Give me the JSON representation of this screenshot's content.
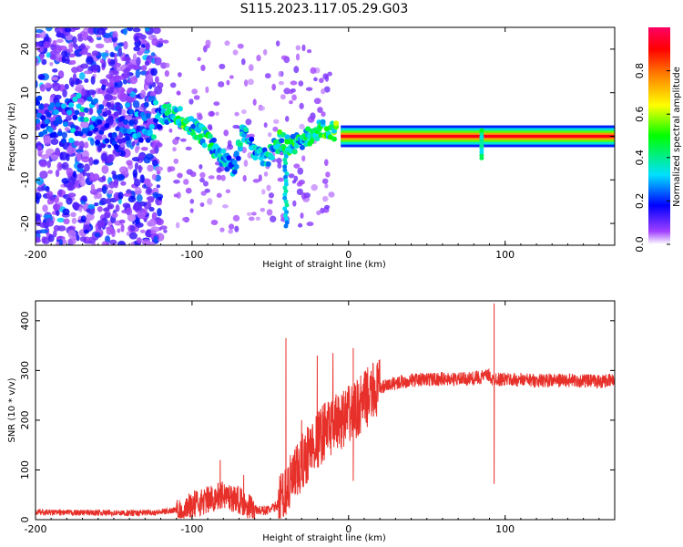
{
  "title": "S115.2023.117.05.29.G03",
  "chart_data": [
    {
      "type": "heatmap",
      "title": "S115.2023.117.05.29.G03",
      "xlabel": "Height of straight line (km)",
      "ylabel": "Frequency (Hz)",
      "xlim": [
        -200,
        170
      ],
      "ylim": [
        -25,
        25
      ],
      "x_ticks": [
        "-200",
        "-100",
        "0",
        "100"
      ],
      "x_tick_values": [
        -200,
        -100,
        0,
        100
      ],
      "y_ticks": [
        "20",
        "10",
        "0",
        "-10",
        "-20"
      ],
      "y_tick_values": [
        20,
        10,
        0,
        -10,
        -20
      ],
      "colorbar": {
        "label": "Normalized spectral amplitude",
        "range": [
          0,
          1
        ],
        "ticks": [
          "0.0",
          "0.2",
          "0.4",
          "0.6",
          "0.8"
        ],
        "tick_values": [
          0.0,
          0.2,
          0.4,
          0.6,
          0.8
        ],
        "colormap": [
          "#ffffff",
          "#8000ff",
          "#0000ff",
          "#00ffff",
          "#00ff00",
          "#ffff00",
          "#ff8000",
          "#ff0000",
          "#ff0066"
        ]
      },
      "ridge": {
        "x": [
          -195,
          -185,
          -175,
          -168,
          -160,
          -150,
          -140,
          -130,
          -120,
          -112,
          -105,
          -100,
          -95,
          -90,
          -85,
          -80,
          -75,
          -72,
          -68,
          -64,
          -60,
          -56,
          -52,
          -48,
          -44,
          -40,
          -35,
          -30,
          -25,
          -20,
          -15,
          -10,
          -5,
          0,
          5,
          10,
          20,
          40,
          60,
          80,
          85,
          100,
          120,
          140,
          170
        ],
        "y": [
          4,
          3,
          4,
          5,
          3,
          2,
          4,
          3,
          5,
          5,
          4,
          2,
          1,
          -1,
          -3,
          -5,
          -7,
          -6,
          1,
          -1,
          -3,
          -4,
          -5,
          -3,
          -1,
          -2,
          -2,
          -1,
          0,
          1,
          2,
          1,
          1,
          0,
          1,
          0,
          0,
          0,
          0,
          0,
          0,
          0,
          0,
          0,
          0
        ],
        "amplitude": [
          0.25,
          0.25,
          0.3,
          0.35,
          0.25,
          0.2,
          0.25,
          0.3,
          0.35,
          0.4,
          0.5,
          0.45,
          0.4,
          0.45,
          0.4,
          0.35,
          0.3,
          0.35,
          0.35,
          0.35,
          0.35,
          0.35,
          0.4,
          0.4,
          0.45,
          0.45,
          0.45,
          0.4,
          0.4,
          0.45,
          0.5,
          0.55,
          0.6,
          0.85,
          0.9,
          0.92,
          0.95,
          0.95,
          0.95,
          0.95,
          0.95,
          0.95,
          0.95,
          0.95,
          0.95
        ]
      },
      "grid": false
    },
    {
      "type": "line",
      "xlabel": "Height of straight line (km)",
      "ylabel": "SNR (10 * v/v)",
      "xlim": [
        -200,
        170
      ],
      "ylim": [
        0,
        440
      ],
      "x_ticks": [
        "-200",
        "-100",
        "0",
        "100"
      ],
      "x_tick_values": [
        -200,
        -100,
        0,
        100
      ],
      "y_ticks": [
        "0",
        "100",
        "200",
        "300",
        "400"
      ],
      "y_tick_values": [
        0,
        100,
        200,
        300,
        400
      ],
      "series": [
        {
          "color": "#e8302a",
          "x": [
            -200,
            -180,
            -160,
            -140,
            -120,
            -110,
            -105,
            -100,
            -95,
            -90,
            -85,
            -80,
            -75,
            -70,
            -65,
            -60,
            -55,
            -50,
            -45,
            -40,
            -35,
            -30,
            -25,
            -20,
            -15,
            -10,
            -5,
            0,
            5,
            10,
            15,
            20,
            25,
            30,
            40,
            50,
            60,
            70,
            80,
            85,
            90,
            92,
            94,
            96,
            100,
            120,
            140,
            160,
            170
          ],
          "y": [
            15,
            14,
            14,
            13,
            15,
            20,
            25,
            30,
            35,
            40,
            45,
            50,
            45,
            40,
            30,
            20,
            18,
            20,
            30,
            60,
            80,
            110,
            140,
            160,
            180,
            190,
            200,
            210,
            220,
            240,
            255,
            265,
            270,
            275,
            280,
            282,
            283,
            282,
            284,
            287,
            290,
            280,
            285,
            282,
            282,
            280,
            280,
            278,
            280
          ]
        }
      ],
      "spikes": [
        {
          "x": -82,
          "y": 120
        },
        {
          "x": -67,
          "y": 90
        },
        {
          "x": -40,
          "y": 365
        },
        {
          "x": -30,
          "y": 200
        },
        {
          "x": -20,
          "y": 330
        },
        {
          "x": -15,
          "y": 235
        },
        {
          "x": -10,
          "y": 335
        },
        {
          "x": 3,
          "y": 345
        },
        {
          "x": 3,
          "y": 78
        },
        {
          "x": 93,
          "y": 435
        },
        {
          "x": 93,
          "y": 72
        }
      ],
      "grid": false
    }
  ]
}
